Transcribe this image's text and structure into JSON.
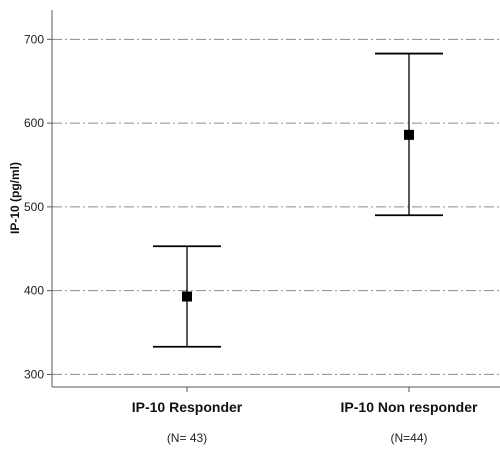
{
  "chart_data": {
    "type": "errorbar",
    "title": "",
    "ylabel": "IP-10 (pg/ml)",
    "xlabel": "",
    "ylim": [
      285,
      735
    ],
    "yticks": [
      300,
      400,
      500,
      600,
      700
    ],
    "grid": true,
    "grid_style": "dash-dot horizontal",
    "categories": [
      "IP-10 Responder",
      "IP-10  Non responder"
    ],
    "n_labels": [
      "(N= 43)",
      "(N=44)"
    ],
    "means": [
      393,
      586
    ],
    "lower": [
      333,
      490
    ],
    "upper": [
      453,
      683
    ],
    "colors": {
      "marker": "#000000",
      "grid": "#8c8c8c",
      "axis": "#5a5a5a"
    }
  }
}
